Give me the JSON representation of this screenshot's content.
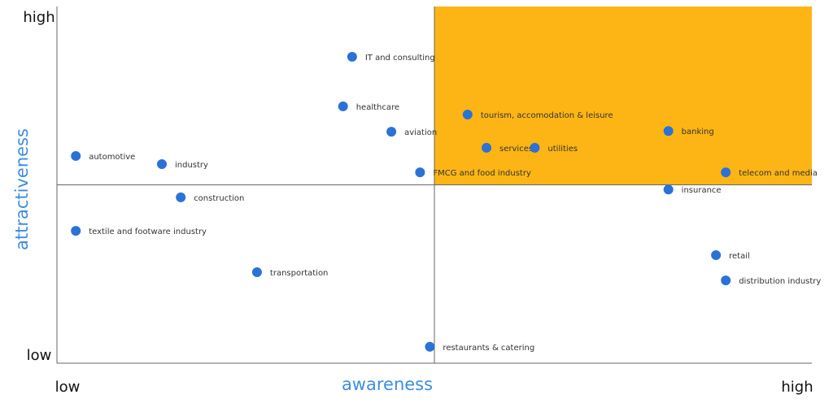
{
  "chart_data": {
    "type": "scatter",
    "x_label": "awareness",
    "y_label": "attractiveness",
    "labels": [
      "IT and consulting",
      "healthcare",
      "aviation",
      "tourism, accomodation & leisure",
      "banking",
      "services",
      "utilities",
      "automotive",
      "industry",
      "FMCG and food industry",
      "telecom and media",
      "construction",
      "insurance",
      "textile and footware industry",
      "retail",
      "distribution industry",
      "transportation",
      "restaurants & catering"
    ],
    "x": [
      39.1,
      37.9,
      44.3,
      54.4,
      81.0,
      56.9,
      63.3,
      2.5,
      13.9,
      48.1,
      88.6,
      16.4,
      81.0,
      2.5,
      87.3,
      88.6,
      26.5,
      49.4
    ],
    "values": [
      85.9,
      72.0,
      64.9,
      69.7,
      65.1,
      60.4,
      60.4,
      58.1,
      55.8,
      53.5,
      53.5,
      46.5,
      48.7,
      37.1,
      30.3,
      23.2,
      25.5,
      4.6
    ],
    "color": "#2a72d6",
    "xlim": [
      0,
      100
    ],
    "ylim": [
      0,
      100
    ],
    "xticks": [
      {
        "value": 0,
        "label": "low"
      },
      {
        "value": 100,
        "label": "high"
      }
    ],
    "yticks": [
      {
        "value": 0,
        "label": "low"
      },
      {
        "value": 100,
        "label": "high"
      }
    ],
    "highlight_quadrant": "top-right",
    "highlight_color": "#fdb515",
    "axis_label_color": "#3d8de0"
  }
}
